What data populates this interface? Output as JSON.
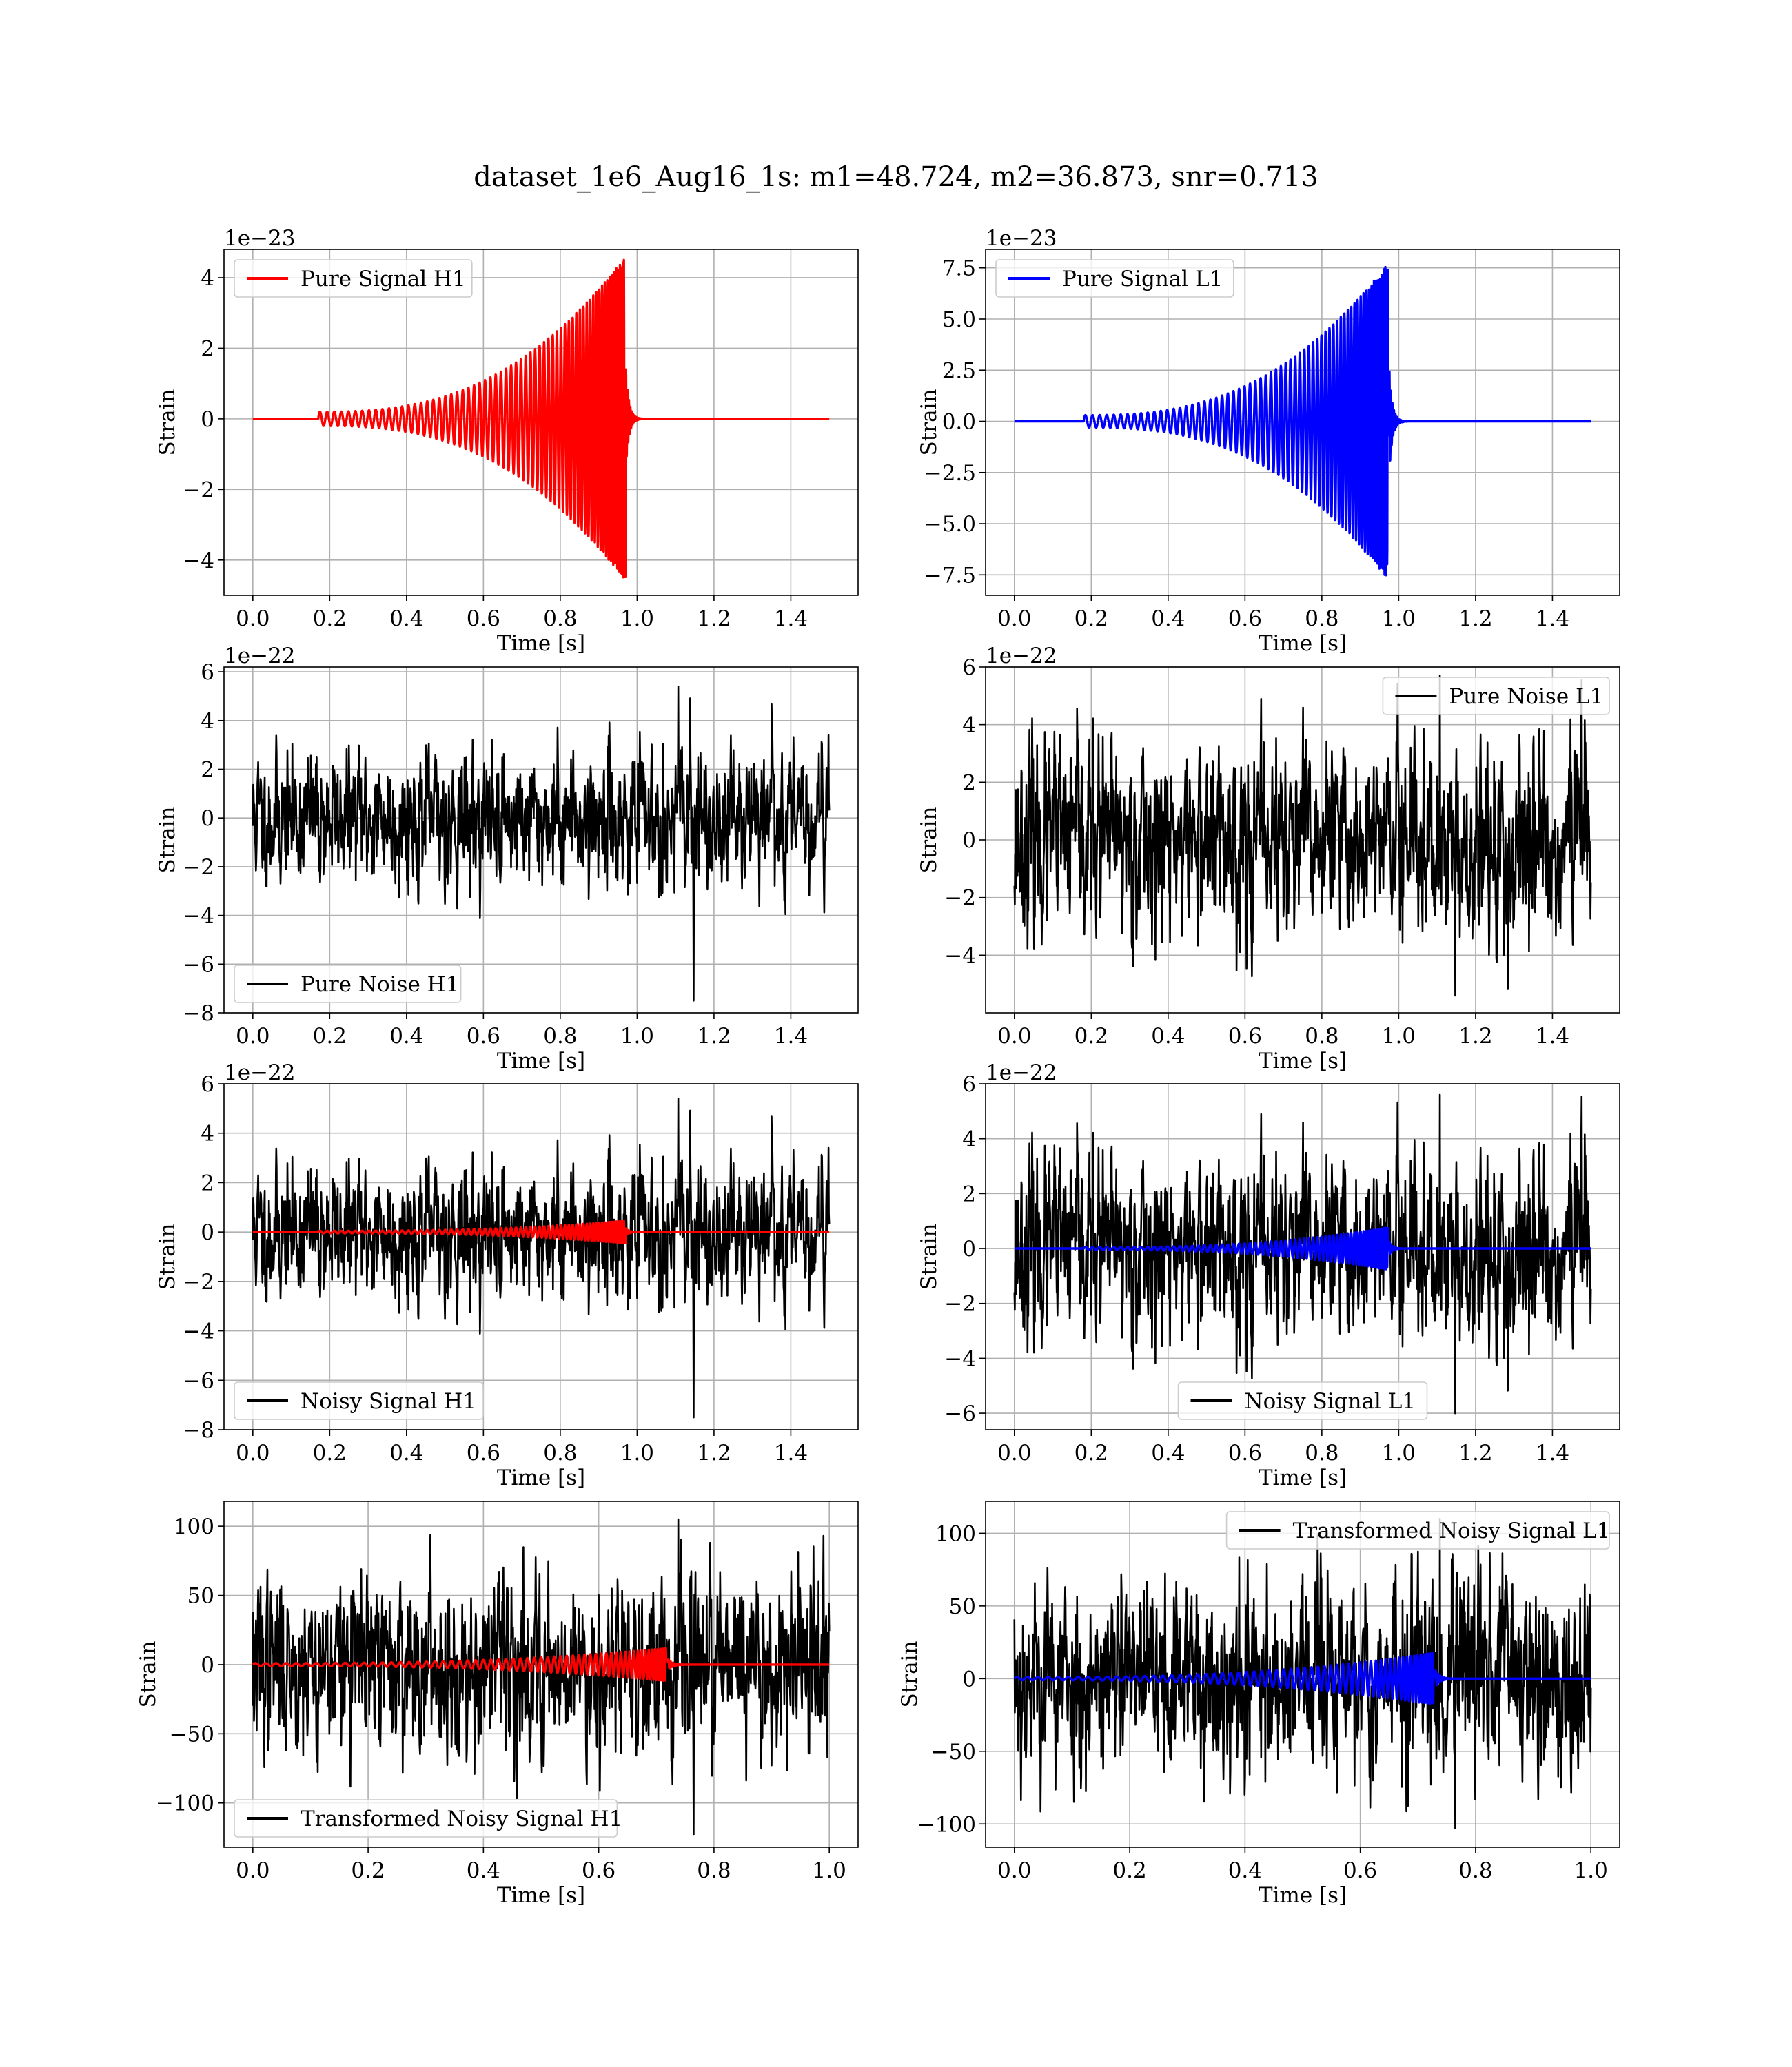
{
  "figure": {
    "title": "dataset_1e6_Aug16_1s: m1=48.724, m2=36.873, snr=0.713",
    "colors": {
      "h1": "#ff0000",
      "l1": "#0000ff",
      "noise": "#000000",
      "grid": "#b0b0b0"
    }
  },
  "chart_data": [
    {
      "id": "pure-signal-h1",
      "type": "line",
      "xlabel": "Time [s]",
      "ylabel": "Strain",
      "offset_text": "1e−23",
      "xlim": [
        -0.075,
        1.575
      ],
      "ylim": [
        -5.0,
        4.8
      ],
      "xticks": [
        0.0,
        0.2,
        0.4,
        0.6,
        0.8,
        1.0,
        1.2,
        1.4
      ],
      "xtick_labels": [
        "0.0",
        "0.2",
        "0.4",
        "0.6",
        "0.8",
        "1.0",
        "1.2",
        "1.4"
      ],
      "yticks": [
        -4,
        -2,
        0,
        2,
        4
      ],
      "ytick_labels": [
        "−4",
        "−2",
        "0",
        "2",
        "4"
      ],
      "legend": {
        "loc": "upper left",
        "entries": [
          {
            "label": "Pure Signal H1",
            "color": "#ff0000"
          }
        ]
      },
      "series": [
        {
          "name": "Pure Signal H1",
          "color": "#ff0000",
          "kind": "chirp",
          "x_range": [
            0.0,
            1.5
          ],
          "signal_start": 0.17,
          "merger_time": 0.97,
          "peak_amplitude": 4.6,
          "start_amplitude": 0.2
        }
      ]
    },
    {
      "id": "pure-signal-l1",
      "type": "line",
      "xlabel": "Time [s]",
      "ylabel": "Strain",
      "offset_text": "1e−23",
      "xlim": [
        -0.075,
        1.575
      ],
      "ylim": [
        -8.5,
        8.4
      ],
      "xticks": [
        0.0,
        0.2,
        0.4,
        0.6,
        0.8,
        1.0,
        1.2,
        1.4
      ],
      "xtick_labels": [
        "0.0",
        "0.2",
        "0.4",
        "0.6",
        "0.8",
        "1.0",
        "1.2",
        "1.4"
      ],
      "yticks": [
        -7.5,
        -5.0,
        -2.5,
        0.0,
        2.5,
        5.0,
        7.5
      ],
      "ytick_labels": [
        "−7.5",
        "−5.0",
        "−2.5",
        "0.0",
        "2.5",
        "5.0",
        "7.5"
      ],
      "legend": {
        "loc": "upper left",
        "entries": [
          {
            "label": "Pure Signal L1",
            "color": "#0000ff"
          }
        ]
      },
      "series": [
        {
          "name": "Pure Signal L1",
          "color": "#0000ff",
          "kind": "chirp",
          "x_range": [
            0.0,
            1.5
          ],
          "signal_start": 0.18,
          "merger_time": 0.975,
          "peak_amplitude": 7.8,
          "start_amplitude": 0.3
        }
      ]
    },
    {
      "id": "pure-noise-h1",
      "type": "line",
      "xlabel": "Time [s]",
      "ylabel": "Strain",
      "offset_text": "1e−22",
      "xlim": [
        -0.075,
        1.575
      ],
      "ylim": [
        -8.0,
        6.2
      ],
      "xticks": [
        0.0,
        0.2,
        0.4,
        0.6,
        0.8,
        1.0,
        1.2,
        1.4
      ],
      "xtick_labels": [
        "0.0",
        "0.2",
        "0.4",
        "0.6",
        "0.8",
        "1.0",
        "1.2",
        "1.4"
      ],
      "yticks": [
        -8,
        -6,
        -4,
        -2,
        0,
        2,
        4,
        6
      ],
      "ytick_labels": [
        "−8",
        "−6",
        "−4",
        "−2",
        "0",
        "2",
        "4",
        "6"
      ],
      "legend": {
        "loc": "lower left",
        "entries": [
          {
            "label": "Pure Noise H1",
            "color": "#000000"
          }
        ]
      },
      "series": [
        {
          "name": "Pure Noise H1",
          "color": "#000000",
          "kind": "noise",
          "x_range": [
            0.0,
            1.5
          ],
          "sigma": 1.3,
          "max": 5.4,
          "min": -7.5,
          "seed": 11
        }
      ]
    },
    {
      "id": "pure-noise-l1",
      "type": "line",
      "xlabel": "Time [s]",
      "ylabel": "Strain",
      "offset_text": "1e−22",
      "xlim": [
        -0.075,
        1.575
      ],
      "ylim": [
        -6.0,
        6.0
      ],
      "xticks": [
        0.0,
        0.2,
        0.4,
        0.6,
        0.8,
        1.0,
        1.2,
        1.4
      ],
      "xtick_labels": [
        "0.0",
        "0.2",
        "0.4",
        "0.6",
        "0.8",
        "1.0",
        "1.2",
        "1.4"
      ],
      "yticks": [
        -4,
        -2,
        0,
        2,
        4,
        6
      ],
      "ytick_labels": [
        "−4",
        "−2",
        "0",
        "2",
        "4",
        "6"
      ],
      "legend": {
        "loc": "upper right",
        "entries": [
          {
            "label": "Pure Noise L1",
            "color": "#000000"
          }
        ]
      },
      "series": [
        {
          "name": "Pure Noise L1",
          "color": "#000000",
          "kind": "noise",
          "x_range": [
            0.0,
            1.5
          ],
          "sigma": 1.6,
          "max": 5.7,
          "min": -5.4,
          "seed": 23
        }
      ]
    },
    {
      "id": "noisy-signal-h1",
      "type": "line",
      "xlabel": "Time [s]",
      "ylabel": "Strain",
      "offset_text": "1e−22",
      "xlim": [
        -0.075,
        1.575
      ],
      "ylim": [
        -8.0,
        6.0
      ],
      "xticks": [
        0.0,
        0.2,
        0.4,
        0.6,
        0.8,
        1.0,
        1.2,
        1.4
      ],
      "xtick_labels": [
        "0.0",
        "0.2",
        "0.4",
        "0.6",
        "0.8",
        "1.0",
        "1.2",
        "1.4"
      ],
      "yticks": [
        -8,
        -6,
        -4,
        -2,
        0,
        2,
        4,
        6
      ],
      "ytick_labels": [
        "−8",
        "−6",
        "−4",
        "−2",
        "0",
        "2",
        "4",
        "6"
      ],
      "legend": {
        "loc": "lower left",
        "entries": [
          {
            "label": "Noisy Signal H1",
            "color": "#000000"
          }
        ]
      },
      "series": [
        {
          "name": "Noisy Signal H1",
          "color": "#000000",
          "kind": "noise",
          "x_range": [
            0.0,
            1.5
          ],
          "sigma": 1.3,
          "max": 5.4,
          "min": -7.5,
          "seed": 11
        },
        {
          "color": "#ff0000",
          "kind": "chirp",
          "x_range": [
            0.0,
            1.5
          ],
          "signal_start": 0.17,
          "merger_time": 0.97,
          "peak_amplitude": 0.46,
          "start_amplitude": 0.05
        }
      ]
    },
    {
      "id": "noisy-signal-l1",
      "type": "line",
      "xlabel": "Time [s]",
      "ylabel": "Strain",
      "offset_text": "1e−22",
      "xlim": [
        -0.075,
        1.575
      ],
      "ylim": [
        -6.6,
        6.0
      ],
      "xticks": [
        0.0,
        0.2,
        0.4,
        0.6,
        0.8,
        1.0,
        1.2,
        1.4
      ],
      "xtick_labels": [
        "0.0",
        "0.2",
        "0.4",
        "0.6",
        "0.8",
        "1.0",
        "1.2",
        "1.4"
      ],
      "yticks": [
        -6,
        -4,
        -2,
        0,
        2,
        4,
        6
      ],
      "ytick_labels": [
        "−6",
        "−4",
        "−2",
        "0",
        "2",
        "4",
        "6"
      ],
      "legend": {
        "loc": "lower center",
        "entries": [
          {
            "label": "Noisy Signal L1",
            "color": "#000000"
          }
        ]
      },
      "series": [
        {
          "name": "Noisy Signal L1",
          "color": "#000000",
          "kind": "noise",
          "x_range": [
            0.0,
            1.5
          ],
          "sigma": 1.6,
          "max": 5.6,
          "min": -6.0,
          "seed": 23
        },
        {
          "color": "#0000ff",
          "kind": "chirp",
          "x_range": [
            0.0,
            1.5
          ],
          "signal_start": 0.18,
          "merger_time": 0.975,
          "peak_amplitude": 0.78,
          "start_amplitude": 0.05
        }
      ]
    },
    {
      "id": "transformed-noisy-signal-h1",
      "type": "line",
      "xlabel": "Time [s]",
      "ylabel": "Strain",
      "offset_text": "",
      "xlim": [
        -0.05,
        1.05
      ],
      "ylim": [
        -132,
        118
      ],
      "xticks": [
        0.0,
        0.2,
        0.4,
        0.6,
        0.8,
        1.0
      ],
      "xtick_labels": [
        "0.0",
        "0.2",
        "0.4",
        "0.6",
        "0.8",
        "1.0"
      ],
      "yticks": [
        -100,
        -50,
        0,
        50,
        100
      ],
      "ytick_labels": [
        "−100",
        "−50",
        "0",
        "50",
        "100"
      ],
      "legend": {
        "loc": "lower left",
        "entries": [
          {
            "label": "Transformed Noisy Signal H1",
            "color": "#000000"
          }
        ]
      },
      "series": [
        {
          "name": "Transformed Noisy Signal H1",
          "color": "#000000",
          "kind": "noise",
          "x_range": [
            0.0,
            1.0
          ],
          "sigma": 30,
          "max": 105,
          "min": -123,
          "seed": 37
        },
        {
          "color": "#ff0000",
          "kind": "chirp",
          "x_range": [
            0.0,
            1.0
          ],
          "signal_start": 0.0,
          "merger_time": 0.72,
          "peak_amplitude": 12,
          "start_amplitude": 1
        }
      ]
    },
    {
      "id": "transformed-noisy-signal-l1",
      "type": "line",
      "xlabel": "Time [s]",
      "ylabel": "Strain",
      "offset_text": "",
      "xlim": [
        -0.05,
        1.05
      ],
      "ylim": [
        -116,
        122
      ],
      "xticks": [
        0.0,
        0.2,
        0.4,
        0.6,
        0.8,
        1.0
      ],
      "xtick_labels": [
        "0.0",
        "0.2",
        "0.4",
        "0.6",
        "0.8",
        "1.0"
      ],
      "yticks": [
        -100,
        -50,
        0,
        50,
        100
      ],
      "ytick_labels": [
        "−100",
        "−50",
        "0",
        "50",
        "100"
      ],
      "legend": {
        "loc": "upper right",
        "entries": [
          {
            "label": "Transformed Noisy Signal L1",
            "color": "#000000"
          }
        ]
      },
      "series": [
        {
          "name": "Transformed Noisy Signal L1",
          "color": "#000000",
          "kind": "noise",
          "x_range": [
            0.0,
            1.0
          ],
          "sigma": 32,
          "max": 110,
          "min": -103,
          "seed": 53
        },
        {
          "color": "#0000ff",
          "kind": "chirp",
          "x_range": [
            0.0,
            1.0
          ],
          "signal_start": 0.0,
          "merger_time": 0.73,
          "peak_amplitude": 18,
          "start_amplitude": 1
        }
      ]
    }
  ]
}
